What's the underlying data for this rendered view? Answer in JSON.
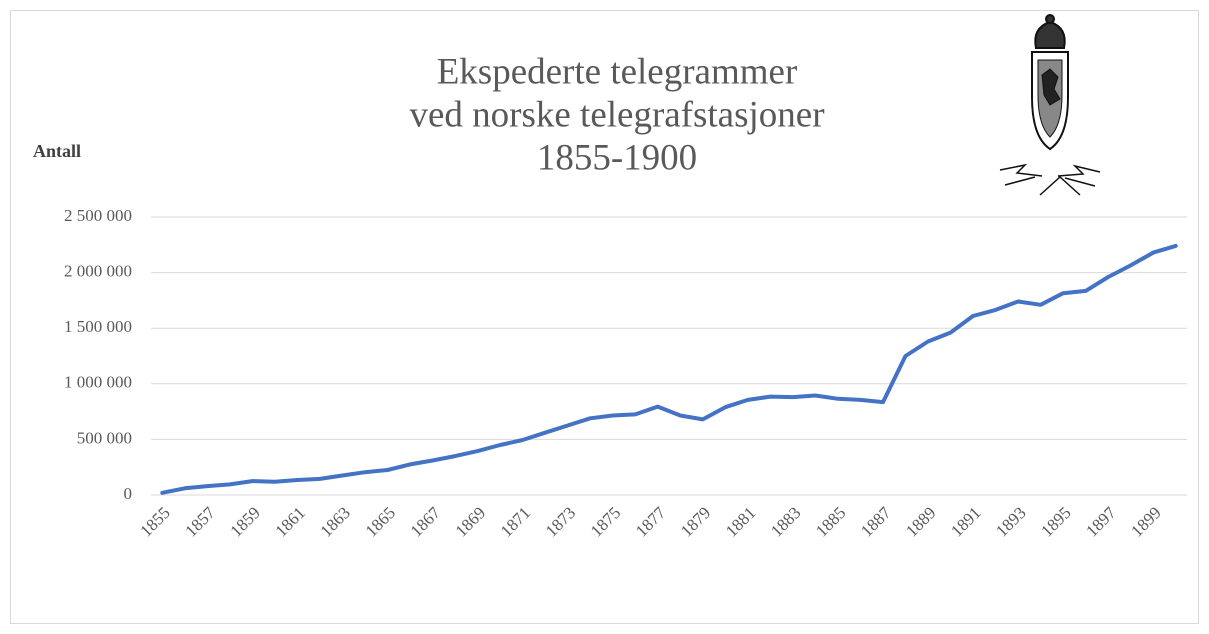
{
  "chart_data": {
    "type": "line",
    "title": [
      "Ekspederte telegrammer",
      "ved norske telegrafstasjoner",
      "1855-1900"
    ],
    "y_label": "Antall",
    "categories": [
      "1855",
      null,
      "1857",
      null,
      "1859",
      null,
      "1861",
      null,
      "1863",
      null,
      "1865",
      null,
      "1867",
      null,
      "1869",
      null,
      "1871",
      null,
      "1873",
      null,
      "1875",
      null,
      "1877",
      null,
      "1879",
      null,
      "1881",
      null,
      "1883",
      null,
      "1885",
      null,
      "1887",
      null,
      "1889",
      null,
      "1891",
      null,
      "1893",
      null,
      "1895",
      null,
      "1897",
      null,
      "1899",
      null
    ],
    "series": [
      {
        "name": "Ekspederte telegrammer",
        "color": "#4472c4",
        "values": [
          20000,
          60000,
          80000,
          95000,
          125000,
          120000,
          135000,
          145000,
          175000,
          205000,
          225000,
          275000,
          310000,
          350000,
          395000,
          450000,
          495000,
          560000,
          625000,
          690000,
          715000,
          725000,
          795000,
          715000,
          680000,
          790000,
          855000,
          885000,
          880000,
          895000,
          865000,
          855000,
          835000,
          1250000,
          1380000,
          1460000,
          1610000,
          1665000,
          1740000,
          1710000,
          1815000,
          1835000,
          1960000,
          2065000,
          2180000,
          2240000
        ]
      }
    ],
    "ylim": [
      0,
      2500000
    ],
    "yticks": [
      0,
      {
        "value": 500000,
        "label": "500 000"
      },
      {
        "value": 1000000,
        "label": "1 000 000"
      },
      {
        "value": 1500000,
        "label": "1 500 000"
      },
      {
        "value": 2000000,
        "label": "2 000 000"
      },
      {
        "value": 2500000,
        "label": "2 500 000"
      }
    ],
    "grid": true
  }
}
